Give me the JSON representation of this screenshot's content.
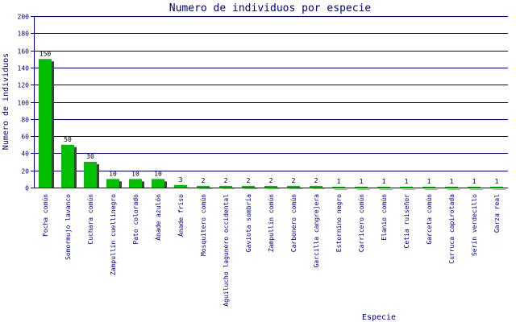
{
  "chart_data": {
    "type": "bar",
    "title": "Numero de individuos por especie",
    "xlabel": "Especie",
    "ylabel": "Numero de individuos",
    "ylim": [
      0,
      200
    ],
    "yticks": [
      0,
      20,
      40,
      60,
      80,
      100,
      120,
      140,
      160,
      180,
      200
    ],
    "grid": true,
    "colors": {
      "bar": "#00c000",
      "shadow": "#404040",
      "grid": "#000080",
      "text": "#000080"
    },
    "categories": [
      "Focha común",
      "Somormujo lavanco",
      "Cuchara común",
      "Zampullín cuellinegro",
      "Pato colorado",
      "Ánade azulón",
      "Ánade friso",
      "Mosquitero común",
      "Aguilucho lagunero occidental",
      "Gaviota sombría",
      "Zampullín común",
      "Carbonero común",
      "Garcilla cangrejera",
      "Estornino negro",
      "Carricero común",
      "Elanio común",
      "Cetia ruiseñor",
      "Garceta común",
      "Curruca capirotada",
      "Serín verdecillo",
      "Garza real"
    ],
    "values": [
      150,
      50,
      30,
      10,
      10,
      10,
      3,
      2,
      2,
      2,
      2,
      2,
      2,
      1,
      1,
      1,
      1,
      1,
      1,
      1,
      1
    ]
  }
}
